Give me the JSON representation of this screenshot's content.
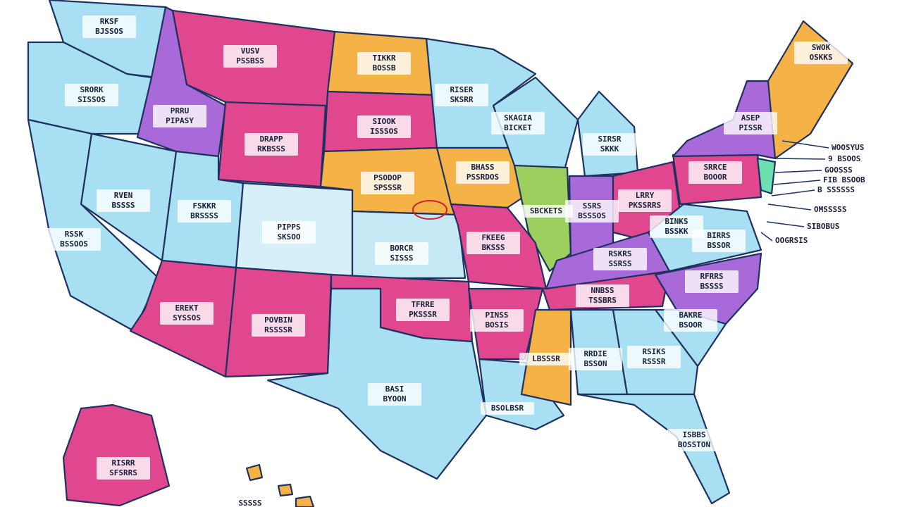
{
  "map": {
    "states": [
      {
        "lines": [
          "RKSF",
          "BJSSOS"
        ]
      },
      {
        "lines": [
          "VUSV",
          "PSSBSS"
        ]
      },
      {
        "lines": [
          "TIKKR",
          "BOSSB"
        ]
      },
      {
        "lines": [
          "SRORK",
          "SISSOS"
        ]
      },
      {
        "lines": [
          "PRRU",
          "PIPASY"
        ]
      },
      {
        "lines": [
          "SIOOK",
          "ISSSOS"
        ]
      },
      {
        "lines": [
          "DRAPP",
          "RKBSSS"
        ]
      },
      {
        "lines": [
          "RISER",
          "SKSRR"
        ]
      },
      {
        "lines": [
          "SKAGIA",
          "BICKET"
        ]
      },
      {
        "lines": [
          "SIRSR",
          "SKKK"
        ]
      },
      {
        "lines": [
          "PSODOP",
          "SPSSSR"
        ]
      },
      {
        "lines": [
          "BHASS",
          "PSSRDOS"
        ]
      },
      {
        "lines": [
          "RVEN",
          "BSSSS"
        ]
      },
      {
        "lines": [
          "FSKKR",
          "BRSSSS"
        ]
      },
      {
        "lines": [
          "PIPPS",
          "SKSOO"
        ]
      },
      {
        "lines": [
          "SBCKETS"
        ]
      },
      {
        "lines": [
          "SSRS",
          "BSSSOS"
        ]
      },
      {
        "lines": [
          "LRRY",
          "PKSSRRS"
        ]
      },
      {
        "lines": [
          "SRRCE",
          "BOOOR"
        ]
      },
      {
        "lines": [
          "ASEP",
          "PISSR"
        ]
      },
      {
        "lines": [
          "SWOK",
          "OSKKS"
        ]
      },
      {
        "lines": [
          "RSSK",
          "BSSOOS"
        ]
      },
      {
        "lines": [
          "BORCR",
          "SISSS"
        ]
      },
      {
        "lines": [
          "FKEEG",
          "BKSSS"
        ]
      },
      {
        "lines": [
          "RSKRS",
          "SSRSS"
        ]
      },
      {
        "lines": [
          "BINKS",
          "BSSKK"
        ]
      },
      {
        "lines": [
          "BIRRS",
          "BSSOR"
        ]
      },
      {
        "lines": [
          "RFRRS",
          "BSSSS"
        ]
      },
      {
        "lines": [
          "NNBSS",
          "TSSBRS"
        ]
      },
      {
        "lines": [
          "EREKT",
          "SYSSOS"
        ]
      },
      {
        "lines": [
          "POVBIN",
          "RSSSSR"
        ]
      },
      {
        "lines": [
          "TFRRE",
          "PKSSSR"
        ]
      },
      {
        "lines": [
          "PINSS",
          "BOSIS"
        ]
      },
      {
        "lines": [
          "BAKRE",
          "BSOOR"
        ]
      },
      {
        "lines": [
          "LBSSSR"
        ]
      },
      {
        "lines": [
          "RRDIE",
          "BSSON"
        ]
      },
      {
        "lines": [
          "RSIKS",
          "RSSSR"
        ]
      },
      {
        "lines": [
          "BASI",
          "BYOON"
        ]
      },
      {
        "lines": [
          "BSOLBSR"
        ]
      },
      {
        "lines": [
          "ISBBS",
          "BOSSTON"
        ]
      },
      {
        "lines": [
          "RISRR",
          "SFSRRS"
        ]
      },
      {
        "lines": [
          "SSSSS"
        ]
      }
    ],
    "callouts": [
      "WOOSYUS",
      "9 BSOOS",
      "GOOSSS",
      "FIB BSOOB",
      "B SSSSSS",
      "OMSSSSS",
      "SIBOBUS",
      "OOGRSIS"
    ]
  }
}
